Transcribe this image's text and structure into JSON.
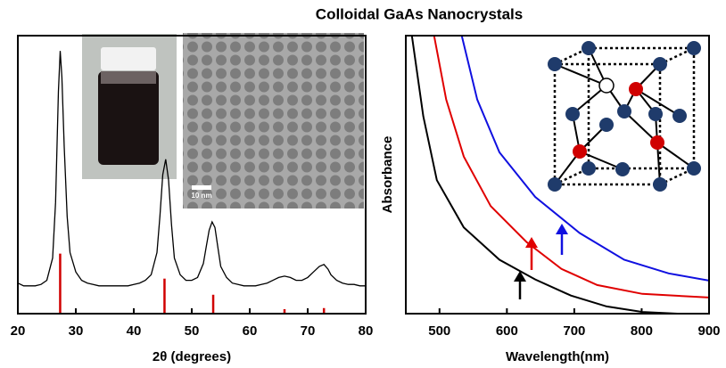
{
  "title": "Colloidal GaAs Nanocrystals",
  "chart_data": [
    {
      "type": "line",
      "x_label": "2θ (degrees)",
      "inset_scale_label": "10 nm",
      "xlim": [
        20,
        80
      ],
      "xticks": [
        20,
        30,
        40,
        50,
        60,
        70,
        80
      ],
      "ylim": [
        0,
        100
      ],
      "color": "#000000",
      "x": [
        20,
        21,
        22,
        23,
        24,
        25,
        26,
        26.5,
        27,
        27.3,
        27.6,
        28,
        28.5,
        29,
        30,
        31,
        32,
        33,
        34,
        35,
        36,
        37,
        38,
        39,
        40,
        41,
        42,
        43,
        44,
        44.5,
        45,
        45.5,
        46,
        46.5,
        47,
        48,
        49,
        50,
        51,
        52,
        52.5,
        53,
        53.5,
        54,
        54.5,
        55,
        56,
        57,
        58,
        59,
        60,
        61,
        62,
        63,
        64,
        65,
        66,
        67,
        68,
        69,
        70,
        71,
        72,
        72.8,
        73.5,
        74,
        75,
        76,
        77,
        78,
        79,
        80
      ],
      "values": [
        11,
        10,
        10,
        10,
        10.5,
        12,
        20,
        40,
        80,
        94.5,
        85,
        60,
        35,
        22,
        15,
        12,
        11,
        10.5,
        10,
        10,
        10,
        10,
        10,
        10,
        10.5,
        11,
        12,
        14,
        22,
        35,
        50,
        55.5,
        48,
        32,
        20,
        14,
        12,
        12,
        13,
        18,
        24,
        30,
        33,
        31,
        24,
        17,
        13,
        11,
        10.5,
        10,
        10,
        10,
        10.5,
        11,
        12,
        13,
        13.5,
        13,
        12,
        12,
        13,
        15,
        17,
        17.7,
        16,
        14,
        12,
        11,
        10.5,
        10.5,
        10,
        10
      ],
      "reference_peaks": {
        "color": "#d00000",
        "x": [
          27.3,
          45.3,
          53.7,
          66.0,
          72.8
        ],
        "values": [
          21.6,
          12.6,
          6.8,
          1.6,
          2.0
        ]
      }
    },
    {
      "type": "line",
      "x_label": "Wavelength(nm)",
      "y_label": "Absorbance",
      "xlim": [
        450,
        900
      ],
      "xticks": [
        500,
        600,
        700,
        800,
        900
      ],
      "ylim": [
        0,
        100
      ],
      "series": [
        {
          "color": "#000000",
          "x": [
            459,
            476,
            496,
            536,
            589,
            642,
            695,
            748,
            801,
            853
          ],
          "values": [
            100,
            71,
            48,
            31,
            19.4,
            12.3,
            6.5,
            2.6,
            0.6,
            0
          ]
        },
        {
          "color": "#e00000",
          "x": [
            492,
            510,
            536,
            576,
            629,
            681,
            734,
            801,
            900
          ],
          "values": [
            100,
            77,
            56.5,
            38.7,
            25.8,
            16.1,
            10.3,
            7.1,
            5.8
          ]
        },
        {
          "color": "#1010e0",
          "x": [
            533,
            556,
            589,
            642,
            708,
            774,
            840,
            900
          ],
          "values": [
            100,
            77,
            58,
            42,
            29,
            19.4,
            14.5,
            11.9
          ]
        }
      ]
    }
  ]
}
